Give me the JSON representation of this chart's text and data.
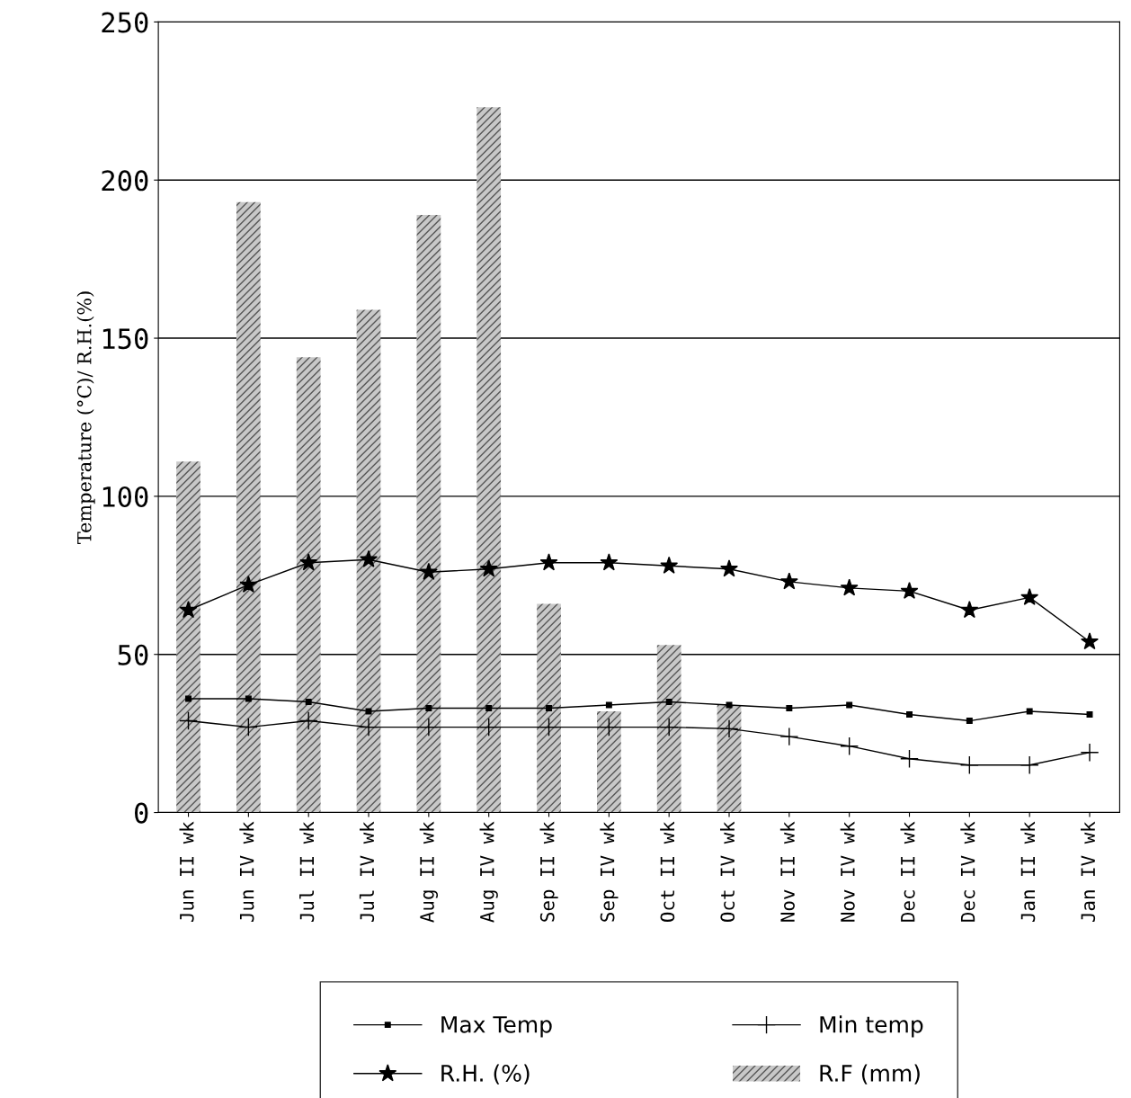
{
  "chart_data": {
    "type": "line",
    "ylabel": "Temperature (°C)/ R.H.(%)",
    "categories": [
      "Jun II wk",
      "Jun IV wk",
      "Jul II wk",
      "Jul IV wk",
      "Aug II wk",
      "Aug IV wk",
      "Sep II wk",
      "Sep IV wk",
      "Oct II wk",
      "Oct IV wk",
      "Nov II wk",
      "Nov IV wk",
      "Dec II wk",
      "Dec IV wk",
      "Jan II wk",
      "Jan IV wk"
    ],
    "series": [
      {
        "name": "Max Temp",
        "marker": "square",
        "color": "#000000",
        "values": [
          36,
          36,
          35,
          32,
          33,
          33,
          33,
          34,
          35,
          34,
          33,
          34,
          31,
          29,
          32,
          31
        ]
      },
      {
        "name": "R.H. (%)",
        "marker": "star",
        "color": "#000000",
        "values": [
          64,
          72,
          79,
          80,
          76,
          77,
          79,
          79,
          78,
          77,
          73,
          71,
          70,
          64,
          68,
          54
        ]
      },
      {
        "name": "Min temp",
        "marker": "cross",
        "color": "#000000",
        "values": [
          29,
          27,
          29,
          27,
          27,
          27,
          27,
          27,
          27,
          26.5,
          24,
          21,
          17,
          15,
          15,
          19
        ]
      },
      {
        "name": "R.F (mm)",
        "type": "bar",
        "color": "#c8c8c8",
        "values": [
          111,
          193,
          144,
          159,
          189,
          223,
          66,
          32,
          53,
          34,
          null,
          null,
          null,
          null,
          null,
          null
        ]
      }
    ],
    "ylim": [
      0,
      250
    ],
    "yticks": [
      0,
      50,
      100,
      150,
      200,
      250
    ],
    "grid": "y",
    "legend": "bottom"
  }
}
